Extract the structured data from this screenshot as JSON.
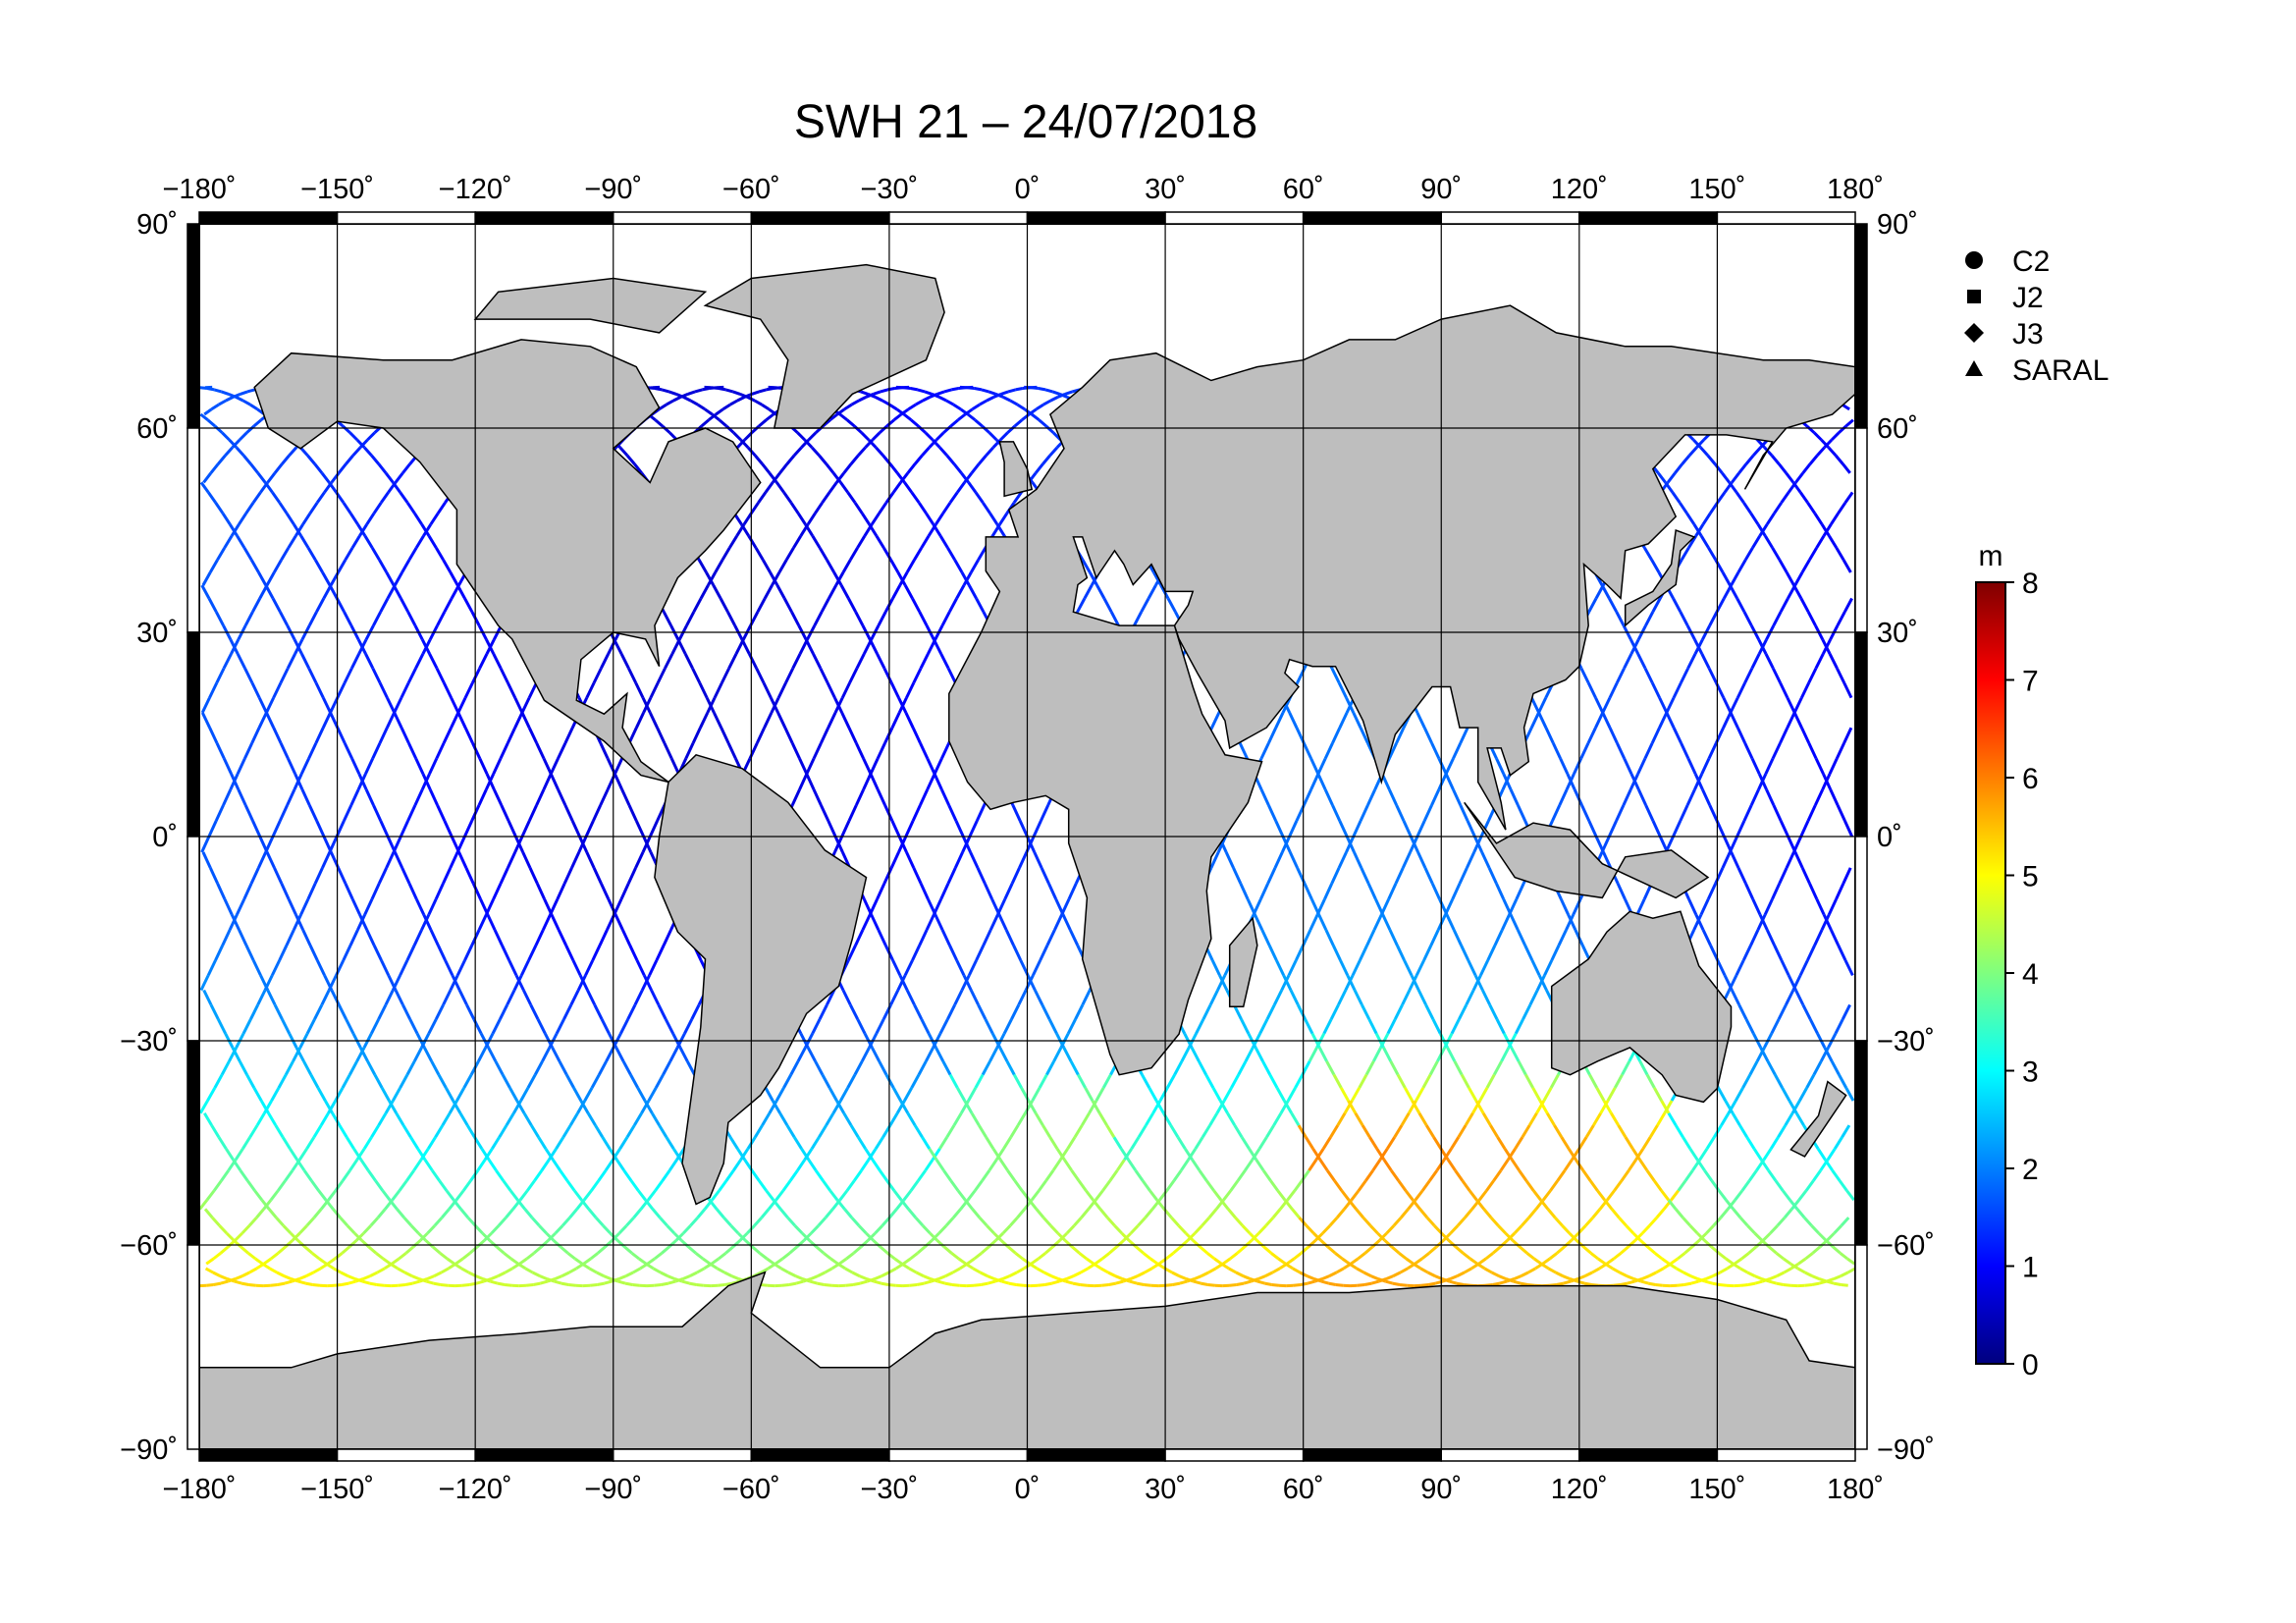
{
  "title": "SWH 21 – 24/07/2018",
  "map": {
    "lon_range": [
      -180,
      180
    ],
    "lat_range": [
      -90,
      90
    ],
    "grid_step_lon": 30,
    "grid_step_lat": 30,
    "lon_ticks": [
      "−180˚",
      "−150˚",
      "−120˚",
      "−90˚",
      "−60˚",
      "−30˚",
      "0˚",
      "30˚",
      "60˚",
      "90˚",
      "120˚",
      "150˚",
      "180˚"
    ],
    "lat_ticks_left": [
      "90˚",
      "60˚",
      "30˚",
      "0˚",
      "−30˚",
      "−60˚",
      "−90˚"
    ],
    "lat_ticks_right": [
      "90˚",
      "60˚",
      "30˚",
      "0˚",
      "−30˚",
      "−60˚",
      "−90˚"
    ],
    "land_color": "#bebebe",
    "ocean_color": "#ffffff"
  },
  "legend": {
    "items": [
      {
        "label": "C2",
        "marker": "circle"
      },
      {
        "label": "J2",
        "marker": "square"
      },
      {
        "label": "J3",
        "marker": "diamond"
      },
      {
        "label": "SARAL",
        "marker": "triangle"
      }
    ]
  },
  "colorbar": {
    "unit": "m",
    "ticks": [
      "8",
      "7",
      "6",
      "5",
      "4",
      "3",
      "2",
      "1",
      "0"
    ],
    "range": [
      0,
      8
    ],
    "colormap": [
      "#00007f",
      "#0000ff",
      "#007fff",
      "#00ffff",
      "#7fff7f",
      "#ffff00",
      "#ff7f00",
      "#ff0000",
      "#7f0000"
    ]
  }
}
